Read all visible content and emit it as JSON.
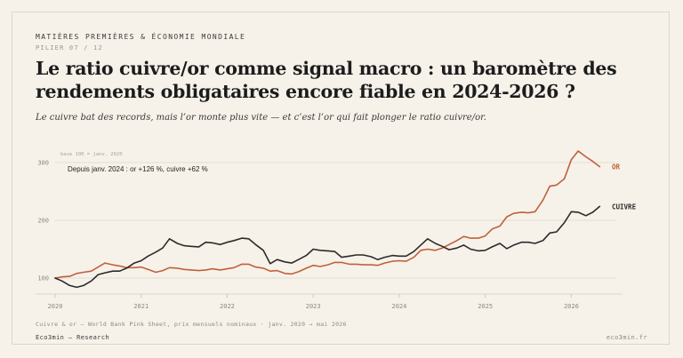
{
  "header": {
    "kicker": "MATIÈRES PREMIÈRES & ÉCONOMIE MONDIALE",
    "pillar": "PILIER 07 / 12",
    "title": "Le ratio cuivre/or comme signal macro : un baromètre des rendements obligataires encore fiable en 2024-2026 ?",
    "subtitle": "Le cuivre bat des records, mais l’or monte plus vite — et c’est l’or qui fait plonger le ratio cuivre/or."
  },
  "footer": {
    "source": "Cuivre & or — World Bank Pink Sheet, prix mensuels nominaux · janv. 2020 → mai 2026",
    "brand": "Eco3min — Research",
    "site": "eco3min.fr"
  },
  "colors": {
    "background": "#f6f2ea",
    "or": "#c2603a",
    "cuivre": "#2b2b2b",
    "grid": "#e3ddd1",
    "axis_text": "#8d887e"
  },
  "chart_data": {
    "type": "line",
    "base_note": "base 100 = janv. 2020",
    "annotation": "Depuis janv. 2024 : or +126 %, cuivre +62 %",
    "ylim": [
      80,
      320
    ],
    "yticks": [
      100,
      200,
      300
    ],
    "xlim": [
      2020,
      2026.42
    ],
    "xticks": [
      2020,
      2021,
      2022,
      2023,
      2024,
      2025,
      2026
    ],
    "grid": true,
    "legend": "right-end labels",
    "series": [
      {
        "name": "OR",
        "color": "#c2603a",
        "points": [
          [
            2020.0,
            100
          ],
          [
            2020.08,
            102
          ],
          [
            2020.17,
            103
          ],
          [
            2020.25,
            108
          ],
          [
            2020.33,
            110
          ],
          [
            2020.42,
            112
          ],
          [
            2020.5,
            119
          ],
          [
            2020.58,
            126
          ],
          [
            2020.67,
            123
          ],
          [
            2020.75,
            121
          ],
          [
            2020.83,
            118
          ],
          [
            2020.92,
            118
          ],
          [
            2021.0,
            119
          ],
          [
            2021.08,
            115
          ],
          [
            2021.17,
            110
          ],
          [
            2021.25,
            113
          ],
          [
            2021.33,
            118
          ],
          [
            2021.42,
            117
          ],
          [
            2021.5,
            115
          ],
          [
            2021.58,
            114
          ],
          [
            2021.67,
            113
          ],
          [
            2021.75,
            114
          ],
          [
            2021.83,
            116
          ],
          [
            2021.92,
            114
          ],
          [
            2022.0,
            116
          ],
          [
            2022.08,
            118
          ],
          [
            2022.17,
            124
          ],
          [
            2022.25,
            124
          ],
          [
            2022.33,
            119
          ],
          [
            2022.42,
            117
          ],
          [
            2022.5,
            112
          ],
          [
            2022.58,
            113
          ],
          [
            2022.67,
            108
          ],
          [
            2022.75,
            107
          ],
          [
            2022.83,
            111
          ],
          [
            2022.92,
            117
          ],
          [
            2023.0,
            122
          ],
          [
            2023.08,
            120
          ],
          [
            2023.17,
            123
          ],
          [
            2023.25,
            127
          ],
          [
            2023.33,
            127
          ],
          [
            2023.42,
            124
          ],
          [
            2023.5,
            124
          ],
          [
            2023.58,
            123
          ],
          [
            2023.67,
            123
          ],
          [
            2023.75,
            122
          ],
          [
            2023.83,
            126
          ],
          [
            2023.92,
            129
          ],
          [
            2024.0,
            130
          ],
          [
            2024.08,
            129
          ],
          [
            2024.17,
            136
          ],
          [
            2024.25,
            148
          ],
          [
            2024.33,
            150
          ],
          [
            2024.42,
            148
          ],
          [
            2024.5,
            152
          ],
          [
            2024.58,
            158
          ],
          [
            2024.67,
            165
          ],
          [
            2024.75,
            172
          ],
          [
            2024.83,
            169
          ],
          [
            2024.92,
            169
          ],
          [
            2025.0,
            173
          ],
          [
            2025.08,
            185
          ],
          [
            2025.17,
            190
          ],
          [
            2025.25,
            206
          ],
          [
            2025.33,
            212
          ],
          [
            2025.42,
            214
          ],
          [
            2025.5,
            213
          ],
          [
            2025.58,
            215
          ],
          [
            2025.67,
            235
          ],
          [
            2025.75,
            259
          ],
          [
            2025.83,
            261
          ],
          [
            2025.92,
            272
          ],
          [
            2026.0,
            305
          ],
          [
            2026.08,
            320
          ],
          [
            2026.17,
            310
          ],
          [
            2026.25,
            302
          ],
          [
            2026.33,
            293
          ]
        ]
      },
      {
        "name": "CUIVRE",
        "color": "#2b2b2b",
        "points": [
          [
            2020.0,
            100
          ],
          [
            2020.08,
            95
          ],
          [
            2020.17,
            87
          ],
          [
            2020.25,
            84
          ],
          [
            2020.33,
            87
          ],
          [
            2020.42,
            95
          ],
          [
            2020.5,
            106
          ],
          [
            2020.58,
            109
          ],
          [
            2020.67,
            112
          ],
          [
            2020.75,
            112
          ],
          [
            2020.83,
            117
          ],
          [
            2020.92,
            126
          ],
          [
            2021.0,
            130
          ],
          [
            2021.08,
            138
          ],
          [
            2021.17,
            145
          ],
          [
            2021.25,
            152
          ],
          [
            2021.33,
            168
          ],
          [
            2021.42,
            160
          ],
          [
            2021.5,
            156
          ],
          [
            2021.58,
            155
          ],
          [
            2021.67,
            154
          ],
          [
            2021.75,
            162
          ],
          [
            2021.83,
            161
          ],
          [
            2021.92,
            158
          ],
          [
            2022.0,
            162
          ],
          [
            2022.08,
            165
          ],
          [
            2022.17,
            169
          ],
          [
            2022.25,
            168
          ],
          [
            2022.33,
            158
          ],
          [
            2022.42,
            148
          ],
          [
            2022.5,
            125
          ],
          [
            2022.58,
            132
          ],
          [
            2022.67,
            128
          ],
          [
            2022.75,
            126
          ],
          [
            2022.83,
            132
          ],
          [
            2022.92,
            139
          ],
          [
            2023.0,
            150
          ],
          [
            2023.08,
            148
          ],
          [
            2023.17,
            147
          ],
          [
            2023.25,
            146
          ],
          [
            2023.33,
            136
          ],
          [
            2023.42,
            138
          ],
          [
            2023.5,
            140
          ],
          [
            2023.58,
            140
          ],
          [
            2023.67,
            137
          ],
          [
            2023.75,
            132
          ],
          [
            2023.83,
            136
          ],
          [
            2023.92,
            139
          ],
          [
            2024.0,
            138
          ],
          [
            2024.08,
            138
          ],
          [
            2024.17,
            146
          ],
          [
            2024.25,
            157
          ],
          [
            2024.33,
            168
          ],
          [
            2024.42,
            160
          ],
          [
            2024.5,
            155
          ],
          [
            2024.58,
            149
          ],
          [
            2024.67,
            152
          ],
          [
            2024.75,
            157
          ],
          [
            2024.83,
            150
          ],
          [
            2024.92,
            147
          ],
          [
            2025.0,
            148
          ],
          [
            2025.08,
            154
          ],
          [
            2025.17,
            160
          ],
          [
            2025.25,
            151
          ],
          [
            2025.33,
            157
          ],
          [
            2025.42,
            162
          ],
          [
            2025.5,
            162
          ],
          [
            2025.58,
            160
          ],
          [
            2025.67,
            165
          ],
          [
            2025.75,
            178
          ],
          [
            2025.83,
            180
          ],
          [
            2025.92,
            196
          ],
          [
            2026.0,
            215
          ],
          [
            2026.08,
            214
          ],
          [
            2026.17,
            208
          ],
          [
            2026.25,
            214
          ],
          [
            2026.33,
            224
          ]
        ]
      }
    ]
  }
}
